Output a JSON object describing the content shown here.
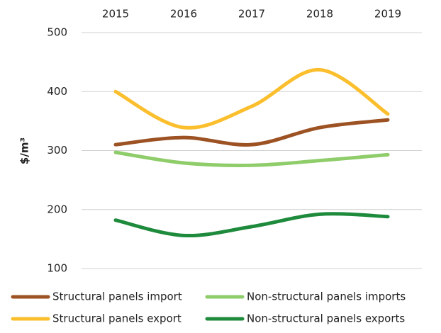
{
  "chart_data": {
    "type": "line",
    "y_label": "$/m³",
    "categories": [
      "2015",
      "2016",
      "2017",
      "2018",
      "2019"
    ],
    "series": [
      {
        "name": "Structural panels import",
        "color": "#9c5223",
        "values": [
          310,
          322,
          310,
          339,
          352
        ]
      },
      {
        "name": "Non-structural panels imports",
        "color": "#8fcc6a",
        "values": [
          297,
          279,
          275,
          283,
          293
        ]
      },
      {
        "name": "Structural panels export",
        "color": "#fbbf2e",
        "values": [
          400,
          339,
          375,
          437,
          362
        ]
      },
      {
        "name": "Non-structural panels exports",
        "color": "#1e8a3c",
        "values": [
          182,
          156,
          171,
          192,
          188
        ]
      }
    ],
    "ylim": [
      100,
      500
    ],
    "yticks": [
      100,
      200,
      300,
      400,
      500
    ],
    "grid": true
  }
}
